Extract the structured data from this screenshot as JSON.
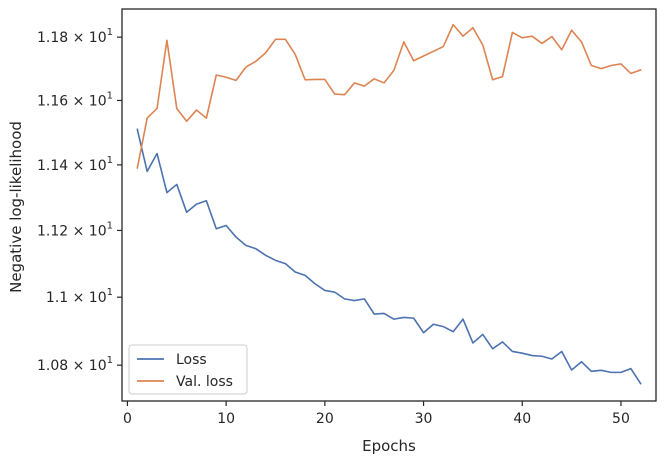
{
  "chart_data": {
    "type": "line",
    "title": "",
    "xlabel": "Epochs",
    "ylabel": "Negative log-likelihood",
    "xlim": [
      -0.55,
      53.55
    ],
    "ylim": [
      10.696,
      11.89
    ],
    "y_scale": "log",
    "x_ticks": [
      0,
      10,
      20,
      30,
      40,
      50
    ],
    "x_tick_labels": [
      "0",
      "10",
      "20",
      "30",
      "40",
      "50"
    ],
    "y_ticks": [
      10.8,
      11.0,
      11.2,
      11.4,
      11.6,
      11.8
    ],
    "y_tick_labels": [
      {
        "mantissa": "1.08",
        "base": "10",
        "exp": "1"
      },
      {
        "mantissa": "1.1",
        "base": "10",
        "exp": "1"
      },
      {
        "mantissa": "1.12",
        "base": "10",
        "exp": "1"
      },
      {
        "mantissa": "1.14",
        "base": "10",
        "exp": "1"
      },
      {
        "mantissa": "1.16",
        "base": "10",
        "exp": "1"
      },
      {
        "mantissa": "1.18",
        "base": "10",
        "exp": "1"
      }
    ],
    "grid": false,
    "legend_position": "lower-left",
    "x": [
      1,
      2,
      3,
      4,
      5,
      6,
      7,
      8,
      9,
      10,
      11,
      12,
      13,
      14,
      15,
      16,
      17,
      18,
      19,
      20,
      21,
      22,
      23,
      24,
      25,
      26,
      27,
      28,
      29,
      30,
      31,
      32,
      33,
      34,
      35,
      36,
      37,
      38,
      39,
      40,
      41,
      42,
      43,
      44,
      45,
      46,
      47,
      48,
      49,
      50,
      51,
      52
    ],
    "series": [
      {
        "name": "Loss",
        "color": "#4c72b0",
        "values": [
          11.51,
          11.38,
          11.435,
          11.315,
          11.34,
          11.255,
          11.28,
          11.29,
          11.205,
          11.215,
          11.18,
          11.155,
          11.145,
          11.125,
          11.11,
          11.1,
          11.075,
          11.065,
          11.04,
          11.02,
          11.015,
          10.995,
          10.99,
          10.995,
          10.95,
          10.952,
          10.935,
          10.94,
          10.938,
          10.895,
          10.92,
          10.913,
          10.898,
          10.935,
          10.865,
          10.89,
          10.848,
          10.868,
          10.84,
          10.835,
          10.828,
          10.826,
          10.818,
          10.84,
          10.786,
          10.81,
          10.782,
          10.785,
          10.779,
          10.779,
          10.79,
          10.746
        ]
      },
      {
        "name": "Val. loss",
        "color": "#dd8452",
        "values": [
          11.39,
          11.545,
          11.575,
          11.79,
          11.575,
          11.535,
          11.57,
          11.545,
          11.68,
          11.673,
          11.663,
          11.705,
          11.723,
          11.75,
          11.793,
          11.793,
          11.745,
          11.665,
          11.666,
          11.666,
          11.62,
          11.618,
          11.655,
          11.645,
          11.668,
          11.655,
          11.695,
          11.785,
          11.725,
          11.74,
          11.755,
          11.77,
          11.84,
          11.803,
          11.83,
          11.775,
          11.665,
          11.675,
          11.815,
          11.798,
          11.803,
          11.78,
          11.802,
          11.76,
          11.822,
          11.785,
          11.71,
          11.7,
          11.71,
          11.715,
          11.685,
          11.696
        ]
      }
    ]
  }
}
